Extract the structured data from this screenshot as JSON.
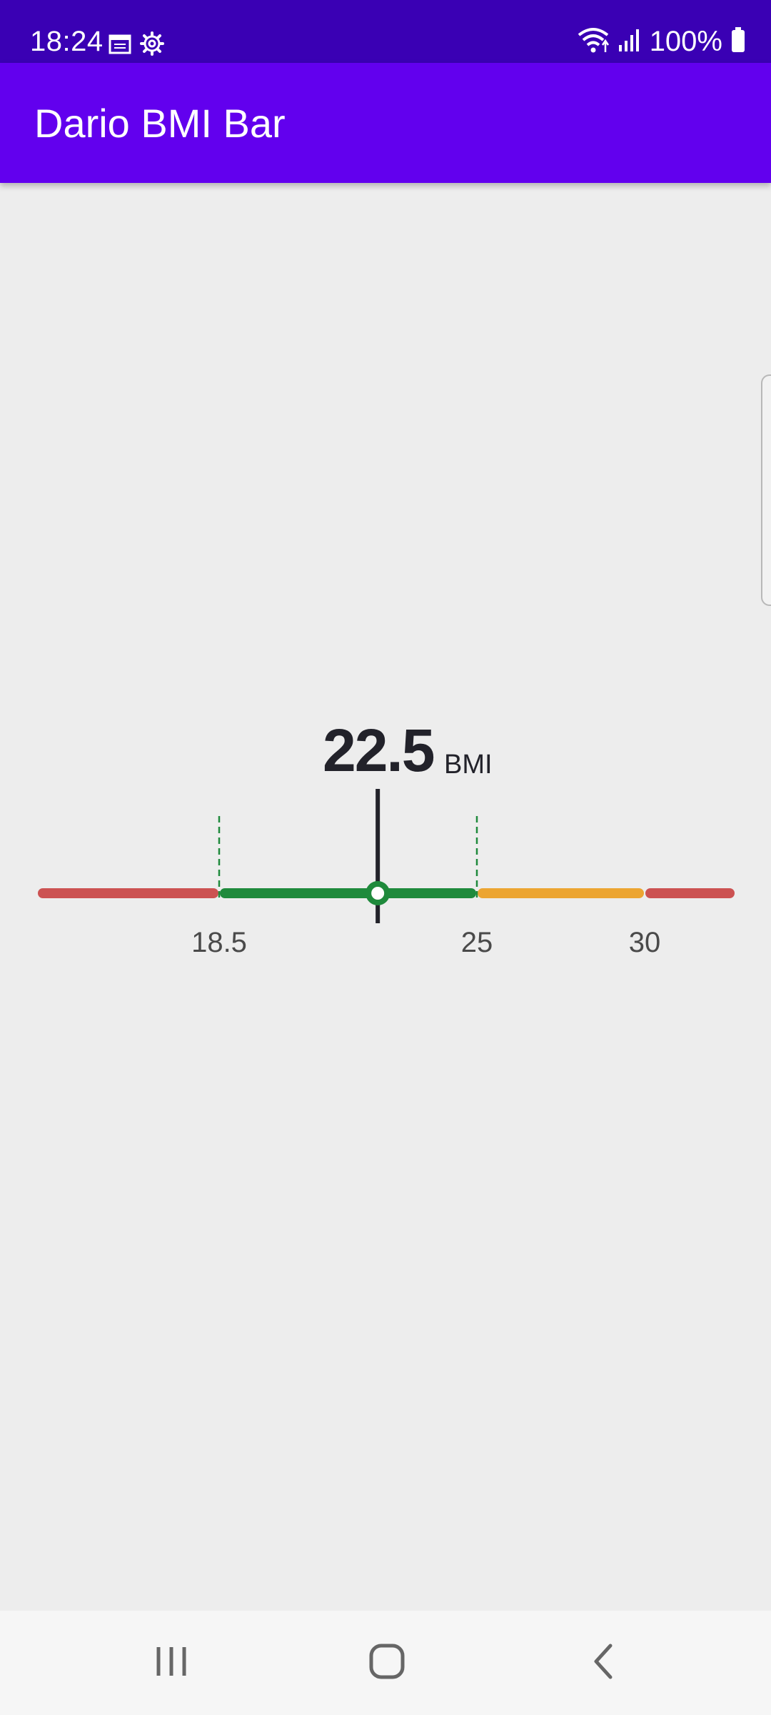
{
  "status_bar": {
    "time": "18:24",
    "battery": "100%",
    "icons": [
      "calendar-icon",
      "settings-gear-icon",
      "wifi-icon",
      "signal-icon",
      "battery-icon"
    ]
  },
  "app_bar": {
    "title": "Dario BMI Bar"
  },
  "bmi": {
    "value": "22.5",
    "unit": "BMI",
    "thresholds": [
      "18.5",
      "25",
      "30"
    ],
    "current": 22.5
  },
  "chart_data": {
    "type": "bar",
    "segments": [
      {
        "from": 13.5,
        "to": 18.5,
        "color": "#cc5252"
      },
      {
        "from": 18.5,
        "to": 25,
        "color": "#1f8a3c"
      },
      {
        "from": 25,
        "to": 30,
        "color": "#eca532"
      },
      {
        "from": 30,
        "to": 33,
        "color": "#cc5252"
      }
    ],
    "tick_labels": [
      "18.5",
      "25",
      "30"
    ],
    "marker_value": 22.5
  },
  "nav_bar": {
    "icons": [
      "recent-apps-icon",
      "home-icon",
      "back-icon"
    ]
  },
  "colors": {
    "status_bar": "#3a00b4",
    "app_bar": "#6200ee",
    "background": "#ededed",
    "red": "#cc5252",
    "green": "#1f8a3c",
    "orange": "#eca532"
  }
}
